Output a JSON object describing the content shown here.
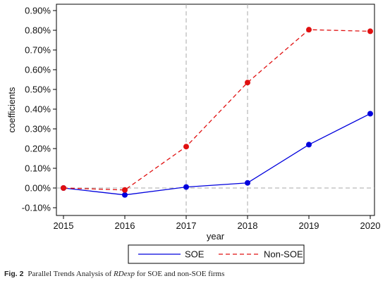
{
  "chart_data": {
    "type": "line",
    "xlabel": "year",
    "ylabel": "coefficients",
    "x": [
      2015,
      2016,
      2017,
      2018,
      2019,
      2020
    ],
    "xlim": [
      2015,
      2020
    ],
    "ylim": [
      -0.1,
      0.9
    ],
    "yticks": [
      -0.1,
      0.0,
      0.1,
      0.2,
      0.3,
      0.4,
      0.5,
      0.6,
      0.7,
      0.8,
      0.9
    ],
    "ytick_labels": [
      "-0.10%",
      "0.00%",
      "0.10%",
      "0.20%",
      "0.30%",
      "0.40%",
      "0.50%",
      "0.60%",
      "0.70%",
      "0.80%",
      "0.90%"
    ],
    "xtick_labels": [
      "2015",
      "2016",
      "2017",
      "2018",
      "2019",
      "2020"
    ],
    "vertical_reference_lines_x": [
      2017,
      2018
    ],
    "horizontal_reference_line_y": 0.0,
    "legend_position": "bottom",
    "series": [
      {
        "name": "SOE",
        "values": [
          0.0,
          -0.035,
          0.005,
          0.026,
          0.22,
          0.377
        ],
        "color": "#0000dd",
        "line_style": "solid"
      },
      {
        "name": "Non-SOE",
        "values": [
          0.0,
          -0.01,
          0.21,
          0.535,
          0.803,
          0.795
        ],
        "color": "#e01010",
        "line_style": "dashed"
      }
    ]
  },
  "caption": {
    "figure_label": "Fig. 2",
    "text_before": "Parallel Trends Analysis of ",
    "text_italic": "RDexp",
    "text_after": " for SOE and non-SOE firms"
  }
}
